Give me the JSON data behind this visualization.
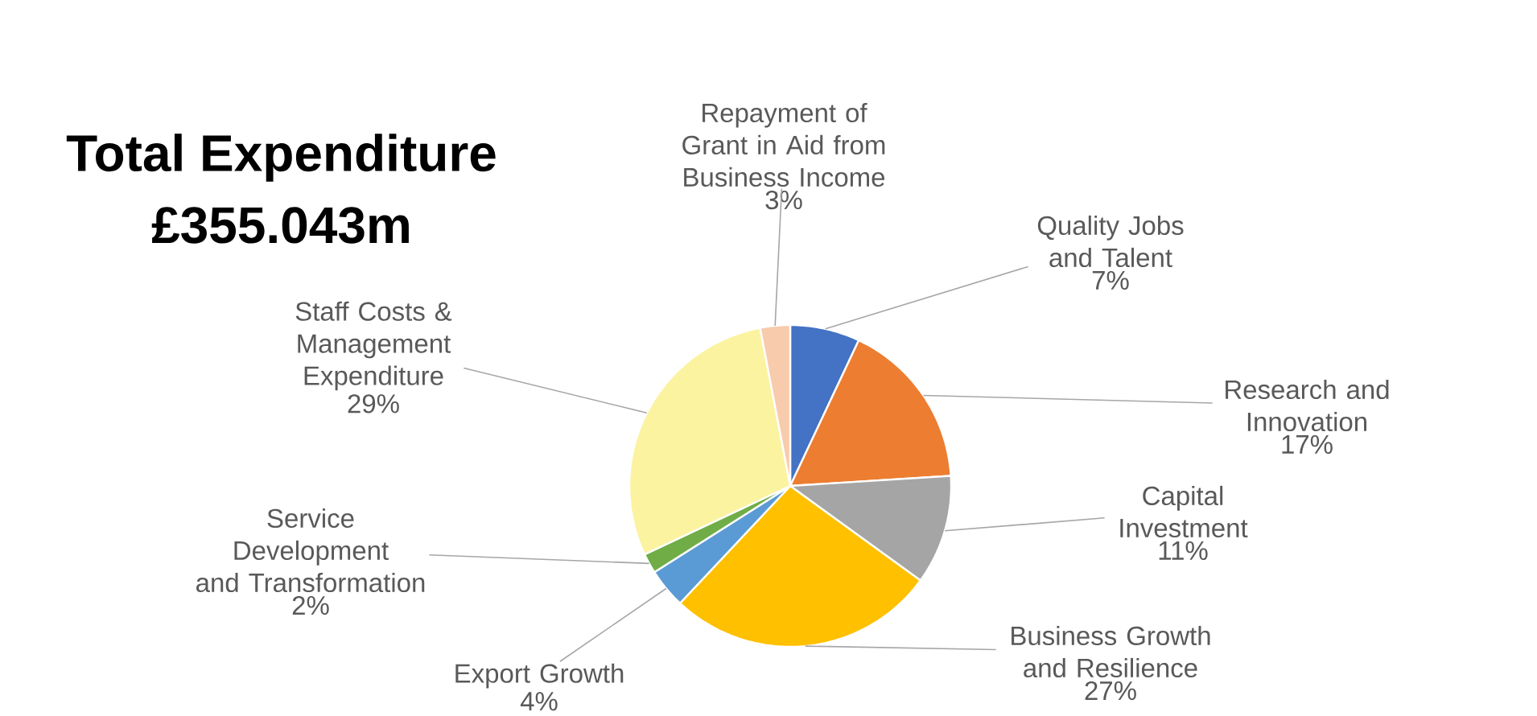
{
  "chart_data": {
    "type": "pie",
    "title": "Total Expenditure",
    "subtitle": "£355.043m",
    "categories": [
      "Quality Jobs and Talent",
      "Research and Innovation",
      "Capital Investment",
      "Business Growth and Resilience",
      "Export Growth",
      "Service Development and Transformation",
      "Staff Costs & Management Expenditure",
      "Repayment of Grant in Aid from Business Income"
    ],
    "values": [
      7,
      17,
      11,
      27,
      4,
      2,
      29,
      3
    ],
    "value_labels": [
      "7%",
      "17%",
      "11%",
      "27%",
      "4%",
      "2%",
      "29%",
      "3%"
    ],
    "colors": [
      "#4472c4",
      "#ed7d31",
      "#a5a5a5",
      "#ffc000",
      "#5b9bd5",
      "#70ad47",
      "#fbf3a0",
      "#f8cbad"
    ]
  }
}
